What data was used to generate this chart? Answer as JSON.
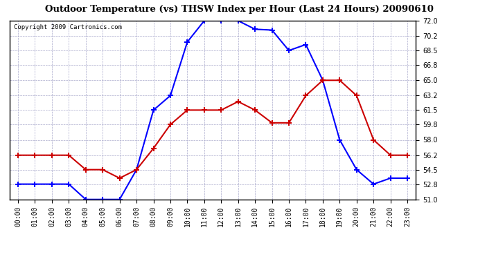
{
  "title": "Outdoor Temperature (vs) THSW Index per Hour (Last 24 Hours) 20090610",
  "copyright": "Copyright 2009 Cartronics.com",
  "hours": [
    "00:00",
    "01:00",
    "02:00",
    "03:00",
    "04:00",
    "05:00",
    "06:00",
    "07:00",
    "08:00",
    "09:00",
    "10:00",
    "11:00",
    "12:00",
    "13:00",
    "14:00",
    "15:00",
    "16:00",
    "17:00",
    "18:00",
    "19:00",
    "20:00",
    "21:00",
    "22:00",
    "23:00"
  ],
  "blue_data": [
    52.8,
    52.8,
    52.8,
    52.8,
    51.0,
    51.0,
    51.0,
    54.5,
    61.5,
    63.2,
    69.5,
    72.0,
    72.0,
    72.0,
    71.0,
    70.9,
    68.5,
    69.2,
    65.0,
    58.0,
    54.5,
    52.8,
    53.5,
    53.5
  ],
  "red_data": [
    56.2,
    56.2,
    56.2,
    56.2,
    54.5,
    54.5,
    53.5,
    54.5,
    57.0,
    59.8,
    61.5,
    61.5,
    61.5,
    62.5,
    61.5,
    60.0,
    60.0,
    63.2,
    65.0,
    65.0,
    63.2,
    58.0,
    56.2,
    56.2
  ],
  "ylim_min": 51.0,
  "ylim_max": 72.0,
  "yticks": [
    51.0,
    52.8,
    54.5,
    56.2,
    58.0,
    59.8,
    61.5,
    63.2,
    65.0,
    66.8,
    68.5,
    70.2,
    72.0
  ],
  "blue_color": "#0000ff",
  "red_color": "#cc0000",
  "grid_color": "#aaaacc",
  "bg_color": "#ffffff",
  "plot_bg_color": "#ffffff"
}
